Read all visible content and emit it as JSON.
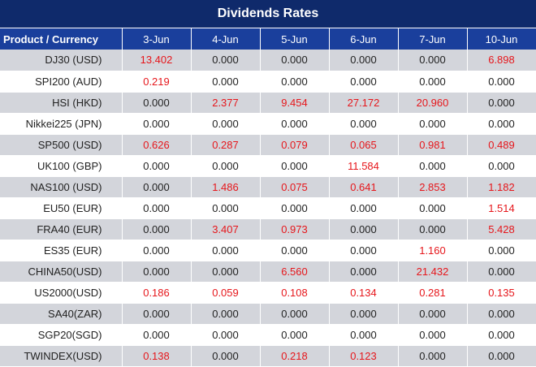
{
  "title": "Dividends Rates",
  "header": {
    "product": "Product / Currency",
    "dates": [
      "3-Jun",
      "4-Jun",
      "5-Jun",
      "6-Jun",
      "7-Jun",
      "10-Jun"
    ]
  },
  "rows": [
    {
      "product": "DJ30 (USD)",
      "values": [
        "13.402",
        "0.000",
        "0.000",
        "0.000",
        "0.000",
        "6.898"
      ]
    },
    {
      "product": "SPI200 (AUD)",
      "values": [
        "0.219",
        "0.000",
        "0.000",
        "0.000",
        "0.000",
        "0.000"
      ]
    },
    {
      "product": "HSI (HKD)",
      "values": [
        "0.000",
        "2.377",
        "9.454",
        "27.172",
        "20.960",
        "0.000"
      ]
    },
    {
      "product": "Nikkei225 (JPN)",
      "values": [
        "0.000",
        "0.000",
        "0.000",
        "0.000",
        "0.000",
        "0.000"
      ]
    },
    {
      "product": "SP500 (USD)",
      "values": [
        "0.626",
        "0.287",
        "0.079",
        "0.065",
        "0.981",
        "0.489"
      ]
    },
    {
      "product": "UK100 (GBP)",
      "values": [
        "0.000",
        "0.000",
        "0.000",
        "11.584",
        "0.000",
        "0.000"
      ]
    },
    {
      "product": "NAS100 (USD)",
      "values": [
        "0.000",
        "1.486",
        "0.075",
        "0.641",
        "2.853",
        "1.182"
      ]
    },
    {
      "product": "EU50 (EUR)",
      "values": [
        "0.000",
        "0.000",
        "0.000",
        "0.000",
        "0.000",
        "1.514"
      ]
    },
    {
      "product": "FRA40 (EUR)",
      "values": [
        "0.000",
        "3.407",
        "0.973",
        "0.000",
        "0.000",
        "5.428"
      ]
    },
    {
      "product": "ES35 (EUR)",
      "values": [
        "0.000",
        "0.000",
        "0.000",
        "0.000",
        "1.160",
        "0.000"
      ]
    },
    {
      "product": "CHINA50(USD)",
      "values": [
        "0.000",
        "0.000",
        "6.560",
        "0.000",
        "21.432",
        "0.000"
      ]
    },
    {
      "product": "US2000(USD)",
      "values": [
        "0.186",
        "0.059",
        "0.108",
        "0.134",
        "0.281",
        "0.135"
      ]
    },
    {
      "product": "SA40(ZAR)",
      "values": [
        "0.000",
        "0.000",
        "0.000",
        "0.000",
        "0.000",
        "0.000"
      ]
    },
    {
      "product": "SGP20(SGD)",
      "values": [
        "0.000",
        "0.000",
        "0.000",
        "0.000",
        "0.000",
        "0.000"
      ]
    },
    {
      "product": "TWINDEX(USD)",
      "values": [
        "0.138",
        "0.000",
        "0.218",
        "0.123",
        "0.000",
        "0.000"
      ]
    }
  ],
  "colors": {
    "title_bg": "#0f2a6b",
    "header_bg": "#1a3f9c",
    "band_bg": "#d3d5db",
    "positive_text": "#e6161b",
    "zero_text": "#222222"
  }
}
